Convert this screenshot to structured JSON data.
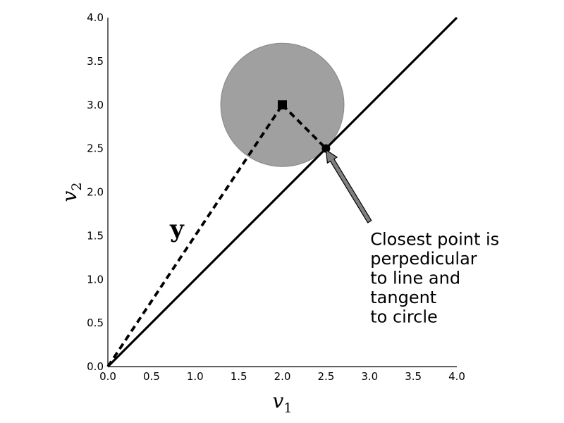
{
  "chart_data": {
    "type": "scatter",
    "title": "",
    "xlabel": {
      "base": "v",
      "sub": "1"
    },
    "ylabel": {
      "base": "v",
      "sub": "2"
    },
    "xlim": [
      0.0,
      4.0
    ],
    "ylim": [
      0.0,
      4.0
    ],
    "grid": false,
    "xticks": [
      "0.0",
      "0.5",
      "1.0",
      "1.5",
      "2.0",
      "2.5",
      "3.0",
      "3.5",
      "4.0"
    ],
    "yticks": [
      "0.0",
      "0.5",
      "1.0",
      "1.5",
      "2.0",
      "2.5",
      "3.0",
      "3.5",
      "4.0"
    ],
    "line": {
      "x": [
        0,
        4
      ],
      "y": [
        0,
        4
      ],
      "style": "solid",
      "color": "#000000"
    },
    "circle": {
      "center": [
        2.0,
        3.0
      ],
      "radius": 0.707,
      "color": "#808080",
      "opacity": 0.75
    },
    "square_point": {
      "x": 2.0,
      "y": 3.0,
      "color": "#000000"
    },
    "closest_point": {
      "x": 2.5,
      "y": 2.5,
      "color": "#000000"
    },
    "vector_y": {
      "x": [
        0,
        2.0
      ],
      "y": [
        0,
        3.0
      ],
      "style": "dashed",
      "label": "y"
    },
    "perpendicular": {
      "x": [
        2.0,
        2.5
      ],
      "y": [
        3.0,
        2.5
      ],
      "style": "dashed"
    },
    "annotation": {
      "lines": [
        "Closest point is",
        "perpedicular",
        "to line and",
        "tangent",
        "to circle"
      ],
      "text_at": [
        3.0,
        1.5
      ],
      "arrow_to": [
        2.5,
        2.5
      ],
      "arrow_color": "#808080"
    }
  }
}
